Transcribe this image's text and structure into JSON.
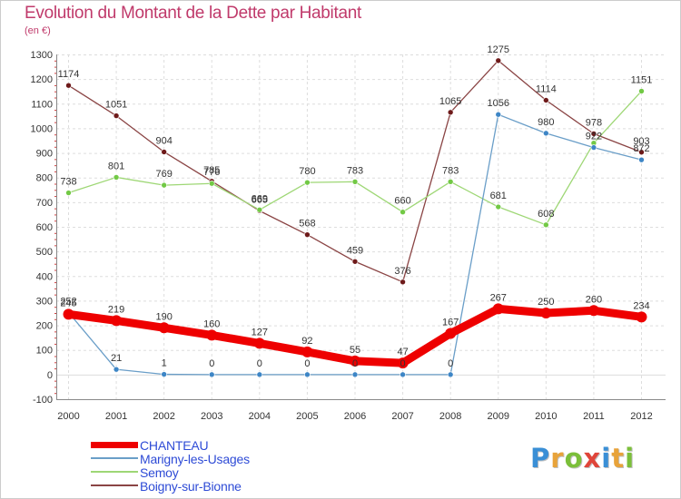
{
  "title": "Evolution du Montant de la Dette par Habitant",
  "subtitle": "(en €)",
  "logo": {
    "text": "Proxiti",
    "letter_colors": [
      "#3a8fd6",
      "#e8a33a",
      "#7bbf3a",
      "#e0453a",
      "#3a8fd6",
      "#e8a33a",
      "#7bbf3a"
    ]
  },
  "chart_data": {
    "type": "line",
    "title": "Evolution du Montant de la Dette par Habitant",
    "subtitle": "(en €)",
    "xlabel": "",
    "ylabel": "",
    "x": [
      "2000",
      "2001",
      "2002",
      "2003",
      "2004",
      "2005",
      "2006",
      "2007",
      "2008",
      "2009",
      "2010",
      "2011",
      "2012"
    ],
    "ylim": [
      -100,
      1300
    ],
    "yticks": [
      "-100",
      "0",
      "100",
      "200",
      "300",
      "400",
      "500",
      "600",
      "700",
      "800",
      "900",
      "1000",
      "1100",
      "1200",
      "1300"
    ],
    "grid": true,
    "legend_position": "bottom-left",
    "series": [
      {
        "name": "CHANTEAU",
        "values": [
          245,
          219,
          190,
          160,
          127,
          92,
          55,
          47,
          167,
          267,
          250,
          260,
          234
        ],
        "labels": [
          "245",
          "219",
          "190",
          "160",
          "127",
          "92",
          "55",
          "47",
          "167",
          "267",
          "250",
          "260",
          "234"
        ],
        "color": "#ee0000",
        "marker": "#ee0000",
        "style": "thick"
      },
      {
        "name": "Marigny-les-Usages",
        "values": [
          252,
          21,
          1,
          0,
          0,
          0,
          0,
          0,
          0,
          1056,
          980,
          922,
          872
        ],
        "labels": [
          "252",
          "21",
          "1",
          "0",
          "0",
          "0",
          "0",
          "0",
          "0",
          "1056",
          "980",
          "922",
          "872"
        ],
        "color": "#6a9ec8",
        "marker": "#3e86c6",
        "style": "thin"
      },
      {
        "name": "Semoy",
        "values": [
          738,
          801,
          769,
          776,
          669,
          780,
          783,
          660,
          783,
          681,
          608,
          940,
          1151
        ],
        "labels": [
          "738",
          "801",
          "769",
          "776",
          "669",
          "780",
          "783",
          "660",
          "783",
          "681",
          "608",
          "",
          "1151"
        ],
        "color": "#9ed775",
        "marker": "#72c945",
        "style": "thin"
      },
      {
        "name": "Boigny-sur-Bionne",
        "values": [
          1174,
          1051,
          904,
          785,
          665,
          568,
          459,
          376,
          1065,
          1275,
          1114,
          978,
          903
        ],
        "labels": [
          "1174",
          "1051",
          "904",
          "785",
          "665",
          "568",
          "459",
          "376",
          "1065",
          "1275",
          "1114",
          "978",
          "903"
        ],
        "color": "#8a4444",
        "marker": "#6e1a1a",
        "style": "thin"
      }
    ]
  }
}
